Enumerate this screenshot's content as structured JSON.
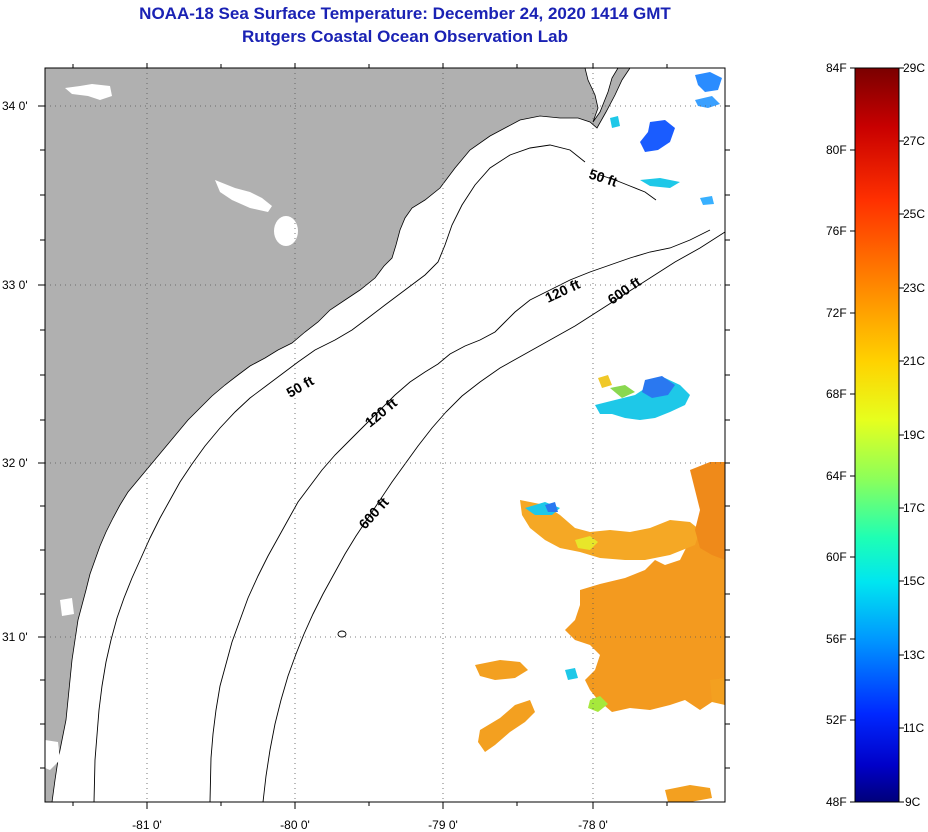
{
  "title": "NOAA-18 Sea Surface Temperature:  December 24, 2020 1414 GMT",
  "subtitle": "Rutgers Coastal Ocean Observation Lab",
  "map": {
    "lat_ticks": [
      "34 0'",
      "33 0'",
      "32 0'",
      "31 0'"
    ],
    "lon_ticks": [
      "-81 0'",
      "-80 0'",
      "-79 0'",
      "-78 0'"
    ],
    "land_color": "#b0b0b0",
    "ocean_color": "#ffffff",
    "contour_labels": [
      "50 ft",
      "50 ft",
      "120 ft",
      "120 ft",
      "600 ft",
      "600 ft"
    ]
  },
  "colorbar": {
    "fahrenheit_labels": [
      "84F",
      "80F",
      "76F",
      "72F",
      "68F",
      "64F",
      "60F",
      "56F",
      "52F",
      "48F"
    ],
    "celsius_labels": [
      "29C",
      "27C",
      "25C",
      "23C",
      "21C",
      "19C",
      "17C",
      "15C",
      "13C",
      "11C",
      "9C"
    ],
    "colors": [
      "#7a0000",
      "#cc0000",
      "#ff3300",
      "#ff7a00",
      "#ffb400",
      "#ffe600",
      "#c8ff3c",
      "#5aff9a",
      "#00e6e6",
      "#00a0ff",
      "#0040ff",
      "#0000c8",
      "#00007a"
    ]
  }
}
